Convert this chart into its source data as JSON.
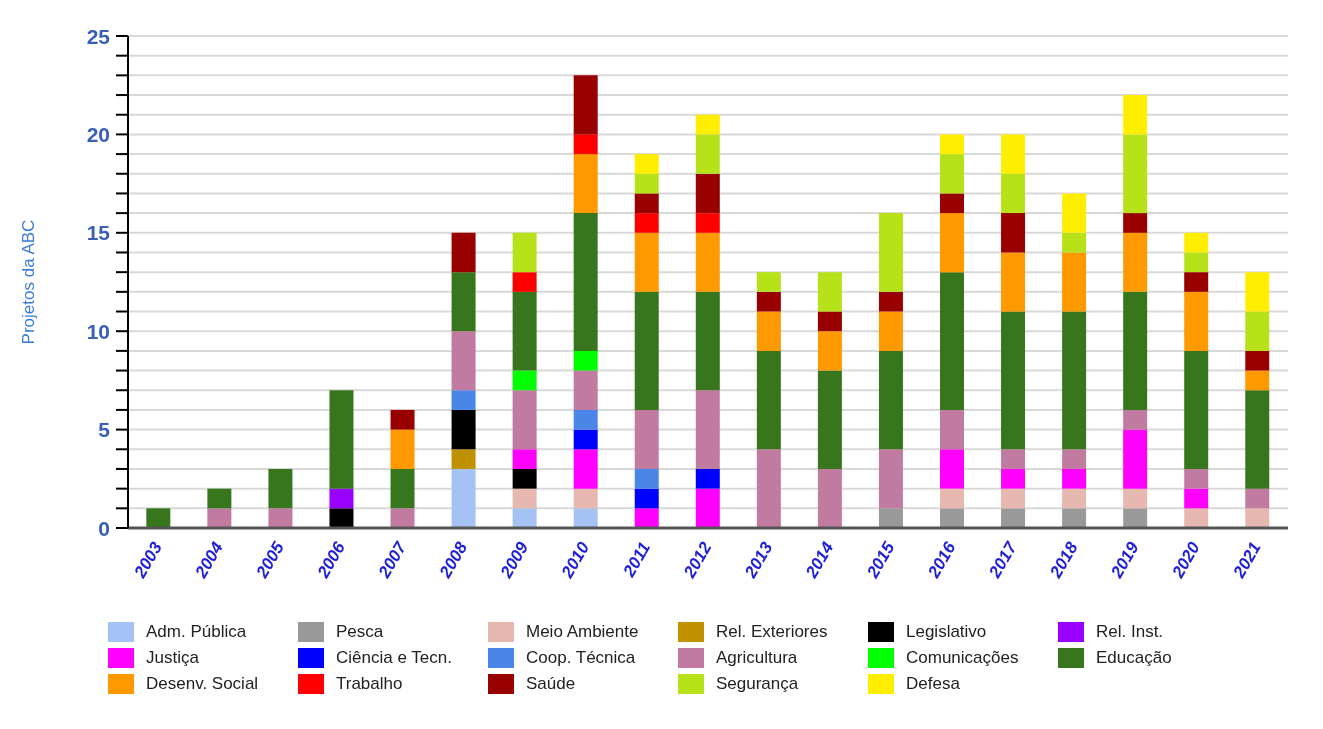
{
  "chart_data": {
    "type": "bar",
    "stacked": true,
    "ylabel": "Projetos da ABC",
    "categories": [
      "2003",
      "2004",
      "2005",
      "2006",
      "2007",
      "2008",
      "2009",
      "2010",
      "2011",
      "2012",
      "2013",
      "2014",
      "2015",
      "2016",
      "2017",
      "2018",
      "2019",
      "2020",
      "2021"
    ],
    "ylim": [
      0,
      25
    ],
    "yticks": [
      0,
      {
        "value": 1,
        "label": null
      },
      {
        "value": 2,
        "label": null
      },
      {
        "value": 3,
        "label": null
      },
      {
        "value": 4,
        "label": null
      },
      5,
      {
        "value": 6,
        "label": null
      },
      {
        "value": 7,
        "label": null
      },
      {
        "value": 8,
        "label": null
      },
      {
        "value": 9,
        "label": null
      },
      10,
      {
        "value": 11,
        "label": null
      },
      {
        "value": 12,
        "label": null
      },
      {
        "value": 13,
        "label": null
      },
      {
        "value": 14,
        "label": null
      },
      15,
      {
        "value": 16,
        "label": null
      },
      {
        "value": 17,
        "label": null
      },
      {
        "value": 18,
        "label": null
      },
      {
        "value": 19,
        "label": null
      },
      20,
      {
        "value": 21,
        "label": null
      },
      {
        "value": 22,
        "label": null
      },
      {
        "value": 23,
        "label": null
      },
      {
        "value": 24,
        "label": null
      },
      25
    ],
    "grid": "y",
    "legend": "bottom",
    "series": [
      {
        "name": "Adm. Pública",
        "color": "#a4c2f4",
        "values": [
          0,
          0,
          0,
          0,
          0,
          3,
          1,
          1,
          0,
          0,
          0,
          0,
          0,
          0,
          0,
          0,
          0,
          0,
          0
        ]
      },
      {
        "name": "Pesca",
        "color": "#999999",
        "values": [
          0,
          0,
          0,
          0,
          0,
          0,
          0,
          0,
          0,
          0,
          0,
          0,
          1,
          1,
          1,
          1,
          1,
          0,
          0
        ]
      },
      {
        "name": "Meio Ambiente",
        "color": "#e6b8af",
        "values": [
          0,
          0,
          0,
          0,
          0,
          0,
          1,
          1,
          0,
          0,
          0,
          0,
          0,
          1,
          1,
          1,
          1,
          1,
          1
        ]
      },
      {
        "name": "Rel. Exteriores",
        "color": "#bf9000",
        "values": [
          0,
          0,
          0,
          0,
          0,
          1,
          0,
          0,
          0,
          0,
          0,
          0,
          0,
          0,
          0,
          0,
          0,
          0,
          0
        ]
      },
      {
        "name": "Legislativo",
        "color": "#000000",
        "values": [
          0,
          0,
          0,
          1,
          0,
          2,
          1,
          0,
          0,
          0,
          0,
          0,
          0,
          0,
          0,
          0,
          0,
          0,
          0
        ]
      },
      {
        "name": "Rel. Inst.",
        "color": "#9900ff",
        "values": [
          0,
          0,
          0,
          1,
          0,
          0,
          0,
          0,
          0,
          0,
          0,
          0,
          0,
          0,
          0,
          0,
          0,
          0,
          0
        ]
      },
      {
        "name": "Justiça",
        "color": "#ff00ff",
        "values": [
          0,
          0,
          0,
          0,
          0,
          0,
          1,
          2,
          1,
          2,
          0,
          0,
          0,
          2,
          1,
          1,
          3,
          1,
          0
        ]
      },
      {
        "name": "Ciência e Tecn.",
        "color": "#0000ff",
        "values": [
          0,
          0,
          0,
          0,
          0,
          0,
          0,
          1,
          1,
          1,
          0,
          0,
          0,
          0,
          0,
          0,
          0,
          0,
          0
        ]
      },
      {
        "name": "Coop. Técnica",
        "color": "#4a86e8",
        "values": [
          0,
          0,
          0,
          0,
          0,
          1,
          0,
          1,
          1,
          0,
          0,
          0,
          0,
          0,
          0,
          0,
          0,
          0,
          0
        ]
      },
      {
        "name": "Agricultura",
        "color": "#c27ba0",
        "values": [
          0,
          1,
          1,
          0,
          1,
          3,
          3,
          2,
          3,
          4,
          4,
          3,
          3,
          2,
          1,
          1,
          1,
          1,
          1
        ]
      },
      {
        "name": "Comunicações",
        "color": "#00ff00",
        "values": [
          0,
          0,
          0,
          0,
          0,
          0,
          1,
          1,
          0,
          0,
          0,
          0,
          0,
          0,
          0,
          0,
          0,
          0,
          0
        ]
      },
      {
        "name": "Educação",
        "color": "#38761d",
        "values": [
          1,
          1,
          2,
          5,
          2,
          3,
          4,
          7,
          6,
          5,
          5,
          5,
          5,
          7,
          7,
          7,
          6,
          6,
          5
        ]
      },
      {
        "name": "Desenv. Social",
        "color": "#ff9900",
        "values": [
          0,
          0,
          0,
          0,
          2,
          0,
          0,
          3,
          3,
          3,
          2,
          2,
          2,
          3,
          3,
          3,
          3,
          3,
          1
        ]
      },
      {
        "name": "Trabalho",
        "color": "#ff0000",
        "values": [
          0,
          0,
          0,
          0,
          0,
          0,
          1,
          1,
          1,
          1,
          0,
          0,
          0,
          0,
          0,
          0,
          0,
          0,
          0
        ]
      },
      {
        "name": "Saúde",
        "color": "#990000",
        "values": [
          0,
          0,
          0,
          0,
          1,
          2,
          0,
          3,
          1,
          2,
          1,
          1,
          1,
          1,
          2,
          0,
          1,
          1,
          1
        ]
      },
      {
        "name": "Segurança",
        "color": "#b7e21a",
        "values": [
          0,
          0,
          0,
          0,
          0,
          0,
          2,
          0,
          1,
          2,
          1,
          2,
          4,
          2,
          2,
          1,
          4,
          1,
          2
        ]
      },
      {
        "name": "Defesa",
        "color": "#ffee00",
        "values": [
          0,
          0,
          0,
          0,
          0,
          0,
          0,
          0,
          1,
          1,
          0,
          0,
          0,
          1,
          2,
          2,
          2,
          1,
          2
        ]
      }
    ]
  }
}
